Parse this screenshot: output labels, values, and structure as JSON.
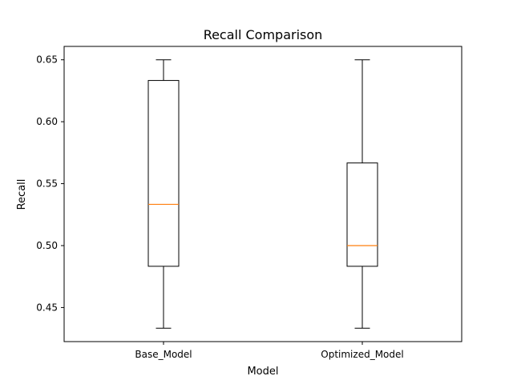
{
  "chart_data": {
    "type": "box",
    "title": "Recall Comparison",
    "xlabel": "Model",
    "ylabel": "Recall",
    "ylim": [
      0.4225,
      0.6608
    ],
    "yticks": [
      0.45,
      0.5,
      0.55,
      0.6,
      0.65
    ],
    "ytick_labels": [
      "0.45",
      "0.50",
      "0.55",
      "0.60",
      "0.65"
    ],
    "categories": [
      "Base_Model",
      "Optimized_Model"
    ],
    "boxes": [
      {
        "name": "Base_Model",
        "whisker_low": 0.4333,
        "q1": 0.4833,
        "median": 0.5333,
        "q3": 0.6333,
        "whisker_high": 0.65
      },
      {
        "name": "Optimized_Model",
        "whisker_low": 0.4333,
        "q1": 0.4833,
        "median": 0.5,
        "q3": 0.5667,
        "whisker_high": 0.65
      }
    ],
    "grid": false,
    "colors": {
      "box": "#000000",
      "median": "#ff7f0e",
      "axes": "#000000"
    }
  }
}
